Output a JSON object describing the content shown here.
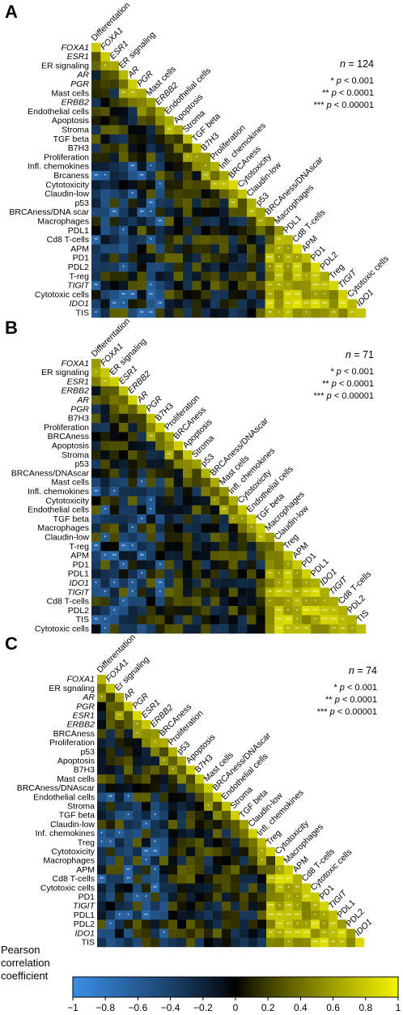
{
  "chart_data": [
    {
      "type": "heatmap",
      "panel": "A",
      "n_label": "124",
      "labels": [
        "FOXA1",
        "ESR1",
        "ER signaling",
        "AR",
        "PGR",
        "Mast cells",
        "ERBB2",
        "Endothelial cells",
        "Apoptosis",
        "Stroma",
        "TGF beta",
        "B7H3",
        "Proliferation",
        "Infl. chemokines",
        "Brcaness",
        "Cytotoxicity",
        "Claudin-low",
        "p53",
        "BRCAness/DNA scar",
        "Macrophages",
        "PDL1",
        "Cd8 T-cells",
        "APM",
        "PD1",
        "PDL2",
        "T-reg",
        "TIGIT",
        "Cytotoxic cells",
        "IDO1",
        "TIS"
      ],
      "column_labels": [
        "Differentation",
        "FOXA1",
        "ESR1",
        "ER signaling",
        "AR",
        "PGR",
        "Mast cells",
        "ERBB2",
        "Endothelial cells",
        "Apoptosis",
        "Stroma",
        "TGF beta",
        "B7H3",
        "Proliferation",
        "Infl. chemokines",
        "BRCAness",
        "Cytotoxicity",
        "Claudin-low",
        "p53",
        "BRCAness/DNAscar",
        "Macrophages",
        "PDL1",
        "Cd8 T-cells",
        "APM",
        "PD1",
        "PDL2",
        "Treg",
        "TIGIT",
        "Cytotoxic cells",
        "IDO1"
      ],
      "italic_labels": [
        "FOXA1",
        "ESR1",
        "AR",
        "PGR",
        "ERBB2",
        "TIGIT",
        "IDO1"
      ]
    },
    {
      "type": "heatmap",
      "panel": "B",
      "n_label": "71",
      "labels": [
        "FOXA1",
        "ER signaling",
        "ESR1",
        "ERBB2",
        "AR",
        "PGR",
        "B7H3",
        "Proliferation",
        "BRCAness",
        "Apoptosis",
        "Stroma",
        "p53",
        "BRCAness/DNAscar",
        "Mast cells",
        "Infl. chemokines",
        "Cytotoxicity",
        "Endothelial cells",
        "TGF beta",
        "Macrophages",
        "Claudin-low",
        "T-reg",
        "APM",
        "PD1",
        "PDL1",
        "IDO1",
        "TIGIT",
        "Cd8 T-cells",
        "PDL2",
        "TIS",
        "Cytotoxic cells"
      ],
      "column_labels": [
        "Differentation",
        "FOXA1",
        "ER signaling",
        "ESR1",
        "ERBB2",
        "AR",
        "PGR",
        "B7H3",
        "Proliferation",
        "BRCAness",
        "Apoptosis",
        "Stroma",
        "p53",
        "BRCAness/DNAscar",
        "Mast cells",
        "Infl. chemokines",
        "Cytotoxicity",
        "Endothelial cells",
        "TGF beta",
        "Macrophages",
        "Claudin-low",
        "Treg",
        "APM",
        "PD1",
        "PDL1",
        "IDO1",
        "TIGIT",
        "Cd8 T-cells",
        "PDL2",
        "TIS"
      ],
      "italic_labels": [
        "FOXA1",
        "ESR1",
        "ERBB2",
        "AR",
        "PGR",
        "IDO1",
        "TIGIT"
      ]
    },
    {
      "type": "heatmap",
      "panel": "C",
      "n_label": "74",
      "labels": [
        "FOXA1",
        "ER sgnaling",
        "AR",
        "PGR",
        "ESR1",
        "ERBB2",
        "BRCAness",
        "Proliferation",
        "p53",
        "Apoptosis",
        "B7H3",
        "Mast cells",
        "BRCAness/DNAscar",
        "Endothelial cells",
        "Stroma",
        "TGF beta",
        "Claudin-low",
        "Inf. chemokines",
        "Treg",
        "Cytotoxicity",
        "Macrophages",
        "APM",
        "Cd8 T-cells",
        "Cytotoxic cells",
        "PD1",
        "TIGIT",
        "PDL1",
        "PDL2",
        "IDO1",
        "TIS"
      ],
      "column_labels": [
        "Differentation",
        "FOXA1",
        "Er signaling",
        "AR",
        "PGR",
        "ESR1",
        "ERBB2",
        "BRCAness",
        "Proliferation",
        "p53",
        "Apoptosis",
        "B7H3",
        "Mast cells",
        "BRCAness/DNAscar",
        "Endothelial cells",
        "Stroma",
        "TGF beta",
        "Claudin-low",
        "Infl. chemokines",
        "Treg",
        "Cytotoxicity",
        "Macrophages",
        "APM",
        "Cd8 T-cells",
        "Cytotoxic cells",
        "PD1",
        "TIGIT",
        "PDL1",
        "PDL2",
        "IDO1"
      ],
      "italic_labels": [
        "FOXA1",
        "AR",
        "PGR",
        "ESR1",
        "ERBB2",
        "TIGIT",
        "IDO1"
      ]
    }
  ],
  "significance_legend": [
    {
      "stars": "*",
      "text": "p < 0.001"
    },
    {
      "stars": "**",
      "text": "p < 0.0001"
    },
    {
      "stars": "***",
      "text": "p < 0.00001"
    }
  ],
  "n_prefix": "n",
  "colorbar": {
    "title": [
      "Pearson",
      "correlation",
      "coefficient"
    ],
    "ticks": [
      -1,
      -0.8,
      -0.6,
      -0.4,
      -0.2,
      0,
      0.2,
      0.4,
      0.6,
      0.8,
      1
    ],
    "tick_labels": [
      "−1",
      "−0.8",
      "−0.6",
      "−0.4",
      "−0.2",
      "0",
      "0.2",
      "0.4",
      "0.6",
      "0.8",
      "1"
    ],
    "colors": {
      "neg": "#3a8ee6",
      "zero": "#000000",
      "pos": "#f4f400"
    }
  }
}
